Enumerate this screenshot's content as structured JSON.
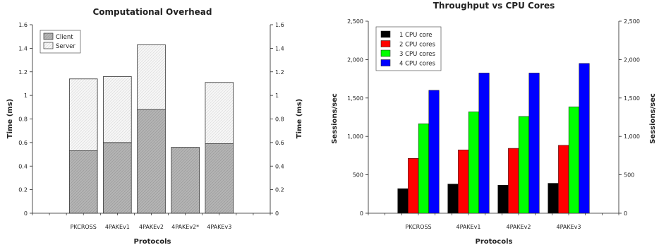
{
  "chart_data": [
    {
      "type": "bar",
      "stacked": true,
      "title": "Computational Overhead",
      "xlabel": "Protocols",
      "ylabel": "Time (ms)",
      "ylabel_right": "Time (ms)",
      "ylim": [
        0,
        1.6
      ],
      "yticks": [
        "0",
        "0.2",
        "0.4",
        "0.6",
        "0.8",
        "1",
        "1.2",
        "1.4",
        "1.6"
      ],
      "categories": [
        "PKCROSS",
        "4PAKEv1",
        "4PAKEv2",
        "4PAKEv2*",
        "4PAKEv3"
      ],
      "series": [
        {
          "name": "Client",
          "values": [
            0.53,
            0.6,
            0.88,
            0.56,
            0.59
          ],
          "color": "#b4b4b4"
        },
        {
          "name": "Server",
          "values": [
            0.61,
            0.56,
            0.55,
            0.0,
            0.52
          ],
          "color": "#f4f4f4"
        }
      ],
      "legend_position": "top-left",
      "grid": false
    },
    {
      "type": "bar",
      "title": "Throughput vs CPU Cores",
      "xlabel": "Protocols",
      "ylabel": "Sessions/sec",
      "ylabel_right": "Sessions/sec",
      "ylim": [
        0,
        2500
      ],
      "yticks": [
        "0",
        "500",
        "1,000",
        "1,500",
        "2,000",
        "2,500"
      ],
      "categories": [
        "PKCROSS",
        "4PAKEv1",
        "4PAKEv2",
        "4PAKEv3"
      ],
      "series": [
        {
          "name": "1 CPU core",
          "values": [
            320,
            380,
            365,
            390
          ],
          "color": "#000000"
        },
        {
          "name": "2 CPU cores",
          "values": [
            715,
            825,
            845,
            885
          ],
          "color": "#ff0000"
        },
        {
          "name": "3 CPU cores",
          "values": [
            1165,
            1320,
            1260,
            1385
          ],
          "color": "#00ff00"
        },
        {
          "name": "4 CPU cores",
          "values": [
            1600,
            1825,
            1825,
            1950
          ],
          "color": "#0000ff"
        }
      ],
      "legend_position": "top-left",
      "grid": false
    }
  ]
}
